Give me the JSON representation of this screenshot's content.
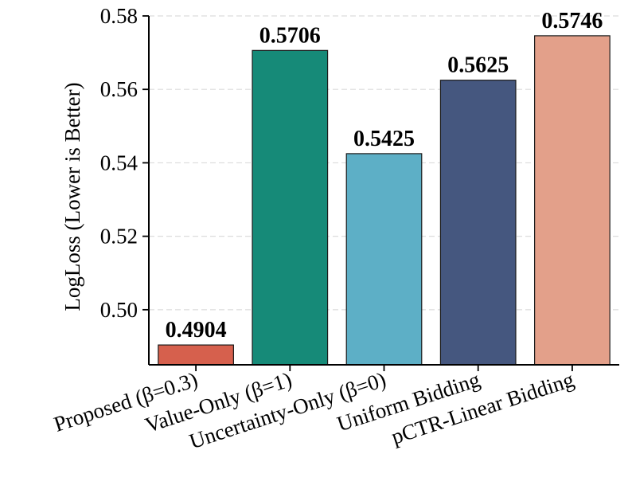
{
  "chart_data": {
    "type": "bar",
    "title": "",
    "xlabel": "",
    "ylabel": "LogLoss (Lower is Better)",
    "ylim": [
      0.485,
      0.58
    ],
    "yticks": [
      0.5,
      0.52,
      0.54,
      0.56,
      0.58
    ],
    "ytick_labels": [
      "0.50",
      "0.52",
      "0.54",
      "0.56",
      "0.58"
    ],
    "grid": "y-dashed",
    "categories": [
      "Proposed (β=0.3)",
      "Value-Only (β=1)",
      "Uncertainty-Only (β=0)",
      "Uniform Bidding",
      "pCTR-Linear Bidding"
    ],
    "values": [
      0.4904,
      0.5706,
      0.5425,
      0.5625,
      0.5746
    ],
    "value_labels": [
      "0.4904",
      "0.5706",
      "0.5425",
      "0.5625",
      "0.5746"
    ],
    "colors": [
      "#d6604d",
      "#168a78",
      "#5dafc6",
      "#45577f",
      "#e3a08a"
    ]
  }
}
